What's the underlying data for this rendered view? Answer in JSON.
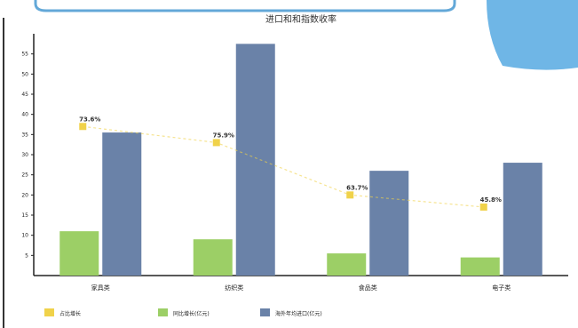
{
  "chart_data": {
    "type": "bar",
    "title": "进口和和指数收率",
    "categories": [
      "家具类",
      "纺织类",
      "食品类",
      "电子类"
    ],
    "series": [
      {
        "name": "同比增长(亿元)",
        "kind": "bar",
        "values": [
          11,
          9,
          5.5,
          4.5
        ]
      },
      {
        "name": "海外年均进口(亿元)",
        "kind": "bar",
        "values": [
          35.5,
          57.5,
          26,
          28
        ]
      },
      {
        "name": "占比增长",
        "kind": "line",
        "values": [
          37,
          33,
          20,
          17
        ],
        "labels": [
          "73.6%",
          "75.9%",
          "63.7%",
          "45.8%"
        ]
      }
    ],
    "ylim": [
      0,
      60
    ],
    "yticks": [
      5,
      10,
      15,
      20,
      25,
      30,
      35,
      40,
      45,
      50,
      55
    ],
    "xlabel": "",
    "ylabel": "",
    "legend_position": "bottom-left",
    "grid": false,
    "colors": {
      "bar_green": "#9ccf66",
      "bar_blue": "#6a82a8",
      "line_yellow": "#f0d24a",
      "header_stroke": "#63a8d8",
      "decor_blue": "#6fb6e6"
    }
  }
}
